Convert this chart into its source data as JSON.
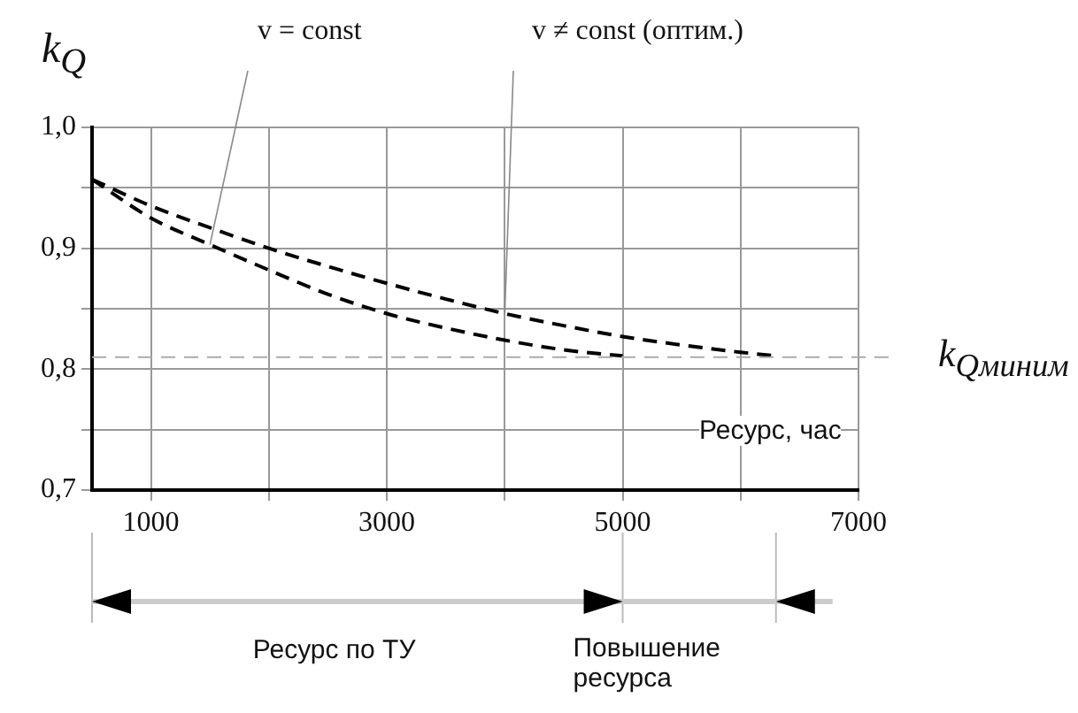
{
  "chart_data": {
    "type": "line",
    "xlabel": "Ресурс, час",
    "ylabel": "k$_{Q}$",
    "xlim": [
      500,
      7000
    ],
    "xticks": [
      1000,
      {
        "value": 2000,
        "label": null
      },
      3000,
      {
        "value": 4000,
        "label": null
      },
      5000,
      {
        "value": 6000,
        "label": null
      },
      7000
    ],
    "ylim": [
      0.7,
      1.0
    ],
    "yticks": [
      {
        "value": 0.7,
        "label": "0,7"
      },
      {
        "value": 0.75,
        "label": null
      },
      {
        "value": 0.8,
        "label": "0,8"
      },
      {
        "value": 0.85,
        "label": null
      },
      {
        "value": 0.9,
        "label": "0,9"
      },
      {
        "value": 0.95,
        "label": null
      },
      {
        "value": 1.0,
        "label": "1,0"
      }
    ],
    "grid": true,
    "legend": false,
    "marker": "none",
    "line_style": "dashed",
    "series": [
      {
        "name": "v = const",
        "color": "#000000",
        "x": [
          500,
          1000,
          1500,
          2000,
          2500,
          3000,
          3500,
          4000,
          4500,
          5000
        ],
        "values": [
          0.957,
          0.925,
          0.903,
          0.882,
          0.862,
          0.846,
          0.834,
          0.824,
          0.816,
          0.811
        ]
      },
      {
        "name": "v ≠ const (оптим.)",
        "color": "#000000",
        "x": [
          500,
          1000,
          1500,
          2000,
          2500,
          3000,
          3500,
          4000,
          4500,
          5000,
          5500,
          6000,
          6300
        ],
        "values": [
          0.957,
          0.935,
          0.917,
          0.9,
          0.885,
          0.871,
          0.858,
          0.846,
          0.836,
          0.827,
          0.82,
          0.814,
          0.811
        ]
      }
    ],
    "ref_lines": [
      {
        "axis": "y",
        "value": 0.81,
        "label": "k$_{Qминим}$",
        "color": "#aaaaaa",
        "line_style": "dashed"
      }
    ],
    "annotations": [
      "Ресурс по ТУ",
      "Повышение ресурса"
    ]
  }
}
